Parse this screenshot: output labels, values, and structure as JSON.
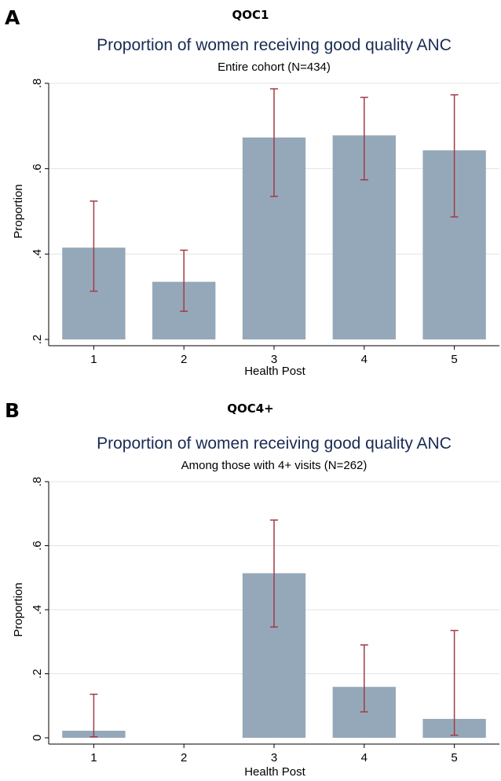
{
  "chart_data": [
    {
      "type": "bar",
      "panel_letter": "A",
      "panel_tag": "QOC1",
      "title": "Proportion of women receiving good quality ANC",
      "subtitle": "Entire cohort (N=434)",
      "xlabel": "Health Post",
      "ylabel": "Proportion",
      "categories": [
        "1",
        "2",
        "3",
        "4",
        "5"
      ],
      "values": [
        0.415,
        0.335,
        0.673,
        0.678,
        0.643
      ],
      "ci_lower": [
        0.313,
        0.266,
        0.535,
        0.574,
        0.487
      ],
      "ci_upper": [
        0.524,
        0.409,
        0.787,
        0.767,
        0.773
      ],
      "ylim": [
        0.2,
        0.8
      ],
      "yticks": [
        0.2,
        0.4,
        0.6,
        0.8
      ],
      "ytick_labels": [
        ".2",
        ".4",
        ".6",
        ".8"
      ],
      "grid": true,
      "colors": {
        "bar": "#95a8b9",
        "error": "#a23b45",
        "title": "#1a2b52",
        "grid": "#e3e3e3"
      }
    },
    {
      "type": "bar",
      "panel_letter": "B",
      "panel_tag": "QOC4+",
      "title": "Proportion of women receiving good quality ANC",
      "subtitle": "Among those with 4+ visits (N=262)",
      "xlabel": "Health Post",
      "ylabel": "Proportion",
      "categories": [
        "1",
        "2",
        "3",
        "4",
        "5"
      ],
      "values": [
        0.022,
        null,
        0.514,
        0.159,
        0.059
      ],
      "ci_lower": [
        0.003,
        null,
        0.346,
        0.081,
        0.008
      ],
      "ci_upper": [
        0.136,
        null,
        0.68,
        0.29,
        0.335
      ],
      "ylim": [
        0,
        0.8
      ],
      "yticks": [
        0,
        0.2,
        0.4,
        0.6,
        0.8
      ],
      "ytick_labels": [
        "0",
        ".2",
        ".4",
        ".6",
        ".8"
      ],
      "grid": true,
      "colors": {
        "bar": "#95a8b9",
        "error": "#a23b45",
        "title": "#1a2b52",
        "grid": "#e3e3e3"
      }
    }
  ]
}
